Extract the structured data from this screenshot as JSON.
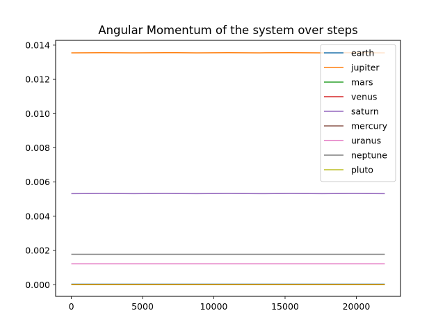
{
  "chart_data": {
    "type": "line",
    "title": "Angular Momentum of the system over steps",
    "xlabel": "",
    "ylabel": "",
    "xlim": [
      -1100,
      23100
    ],
    "ylim": [
      -0.00068,
      0.01428
    ],
    "x_ticks": [
      0,
      5000,
      10000,
      15000,
      20000
    ],
    "y_ticks": [
      0.0,
      0.002,
      0.004,
      0.006,
      0.008,
      0.01,
      0.012,
      0.014
    ],
    "y_tick_labels": [
      "0.000",
      "0.002",
      "0.004",
      "0.006",
      "0.008",
      "0.010",
      "0.012",
      "0.014"
    ],
    "x_tick_labels": [
      "0",
      "5000",
      "10000",
      "15000",
      "20000"
    ],
    "grid": false,
    "legend_position": "top-right",
    "x": [
      0,
      2200,
      4400,
      6600,
      8800,
      11000,
      13200,
      15400,
      17600,
      19800,
      22000
    ],
    "series": [
      {
        "name": "earth",
        "color": "#1f77b4",
        "values": [
          3e-05,
          3e-05,
          3e-05,
          3e-05,
          3e-05,
          3e-05,
          3e-05,
          3e-05,
          3e-05,
          3e-05,
          3e-05
        ]
      },
      {
        "name": "jupiter",
        "color": "#ff7f0e",
        "values": [
          0.01355,
          0.01356,
          0.01355,
          0.01356,
          0.01355,
          0.01356,
          0.01355,
          0.01356,
          0.01355,
          0.01356,
          0.01355
        ]
      },
      {
        "name": "mars",
        "color": "#2ca02c",
        "values": [
          3e-06,
          3e-06,
          3e-06,
          3e-06,
          3e-06,
          3e-06,
          3e-06,
          3e-06,
          3e-06,
          3e-06,
          3e-06
        ]
      },
      {
        "name": "venus",
        "color": "#d62728",
        "values": [
          2e-05,
          2e-05,
          2e-05,
          2e-05,
          2e-05,
          2e-05,
          2e-05,
          2e-05,
          2e-05,
          2e-05,
          2e-05
        ]
      },
      {
        "name": "saturn",
        "color": "#9467bd",
        "values": [
          0.00532,
          0.00533,
          0.00532,
          0.00533,
          0.00532,
          0.00533,
          0.00532,
          0.00533,
          0.00532,
          0.00533,
          0.00532
        ]
      },
      {
        "name": "mercury",
        "color": "#8c564b",
        "values": [
          1e-06,
          1e-06,
          1e-06,
          1e-06,
          1e-06,
          1e-06,
          1e-06,
          1e-06,
          1e-06,
          1e-06,
          1e-06
        ]
      },
      {
        "name": "uranus",
        "color": "#e377c2",
        "values": [
          0.00122,
          0.00122,
          0.00122,
          0.00122,
          0.00122,
          0.00122,
          0.00122,
          0.00122,
          0.00122,
          0.00122,
          0.00122
        ]
      },
      {
        "name": "neptune",
        "color": "#7f7f7f",
        "values": [
          0.00178,
          0.00178,
          0.00178,
          0.00178,
          0.00178,
          0.00178,
          0.00178,
          0.00178,
          0.00178,
          0.00178,
          0.00178
        ]
      },
      {
        "name": "pluto",
        "color": "#bcbd22",
        "values": [
          1e-06,
          1e-06,
          1e-06,
          1e-06,
          1e-06,
          1e-06,
          1e-06,
          1e-06,
          1e-06,
          1e-06,
          1e-06
        ]
      }
    ]
  }
}
